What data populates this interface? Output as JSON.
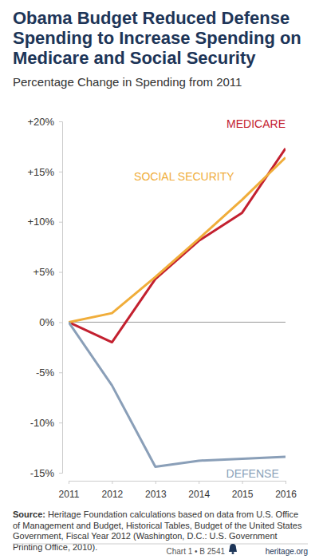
{
  "chart_data": {
    "type": "line",
    "title": "Obama Budget Reduced Defense Spending to Increase Spending on Medicare and Social Security",
    "subtitle": "Percentage Change in Spending from 2011",
    "x": [
      2011,
      2012,
      2013,
      2014,
      2015,
      2016
    ],
    "xlim": [
      2011,
      2016
    ],
    "xticks": [
      2011,
      2012,
      2013,
      2014,
      2015,
      2016
    ],
    "ylim": [
      -15,
      20
    ],
    "yticks": [
      {
        "value": -15,
        "label": "-15%"
      },
      {
        "value": -10,
        "label": "-10%"
      },
      {
        "value": -5,
        "label": "-5%"
      },
      {
        "value": 0,
        "label": "0%"
      },
      {
        "value": 5,
        "label": "+5%"
      },
      {
        "value": 10,
        "label": "+10%"
      },
      {
        "value": 15,
        "label": "+15%"
      },
      {
        "value": 20,
        "label": "+20%"
      }
    ],
    "grid": false,
    "series": [
      {
        "name": "MEDICARE",
        "color": "#c3202f",
        "values": [
          0,
          -2,
          4.3,
          8.1,
          10.9,
          17.3
        ]
      },
      {
        "name": "SOCIAL SECURITY",
        "color": "#f0ad3a",
        "values": [
          0,
          0.9,
          4.5,
          8.3,
          12.2,
          16.4
        ]
      },
      {
        "name": "DEFENSE",
        "color": "#8a9fb8",
        "values": [
          0,
          -6.3,
          -14.4,
          -13.8,
          -13.6,
          -13.4
        ]
      }
    ],
    "source_label": "Source:",
    "source": "Heritage Foundation calculations based on data from U.S. Office of Management and Budget, Historical Tables, Budget of the United States Government, Fiscal Year 2012 (Washington, D.C.: U.S. Government Printing Office, 2010).",
    "footer": "Chart 1 • B 2541",
    "site": "heritage.org"
  }
}
